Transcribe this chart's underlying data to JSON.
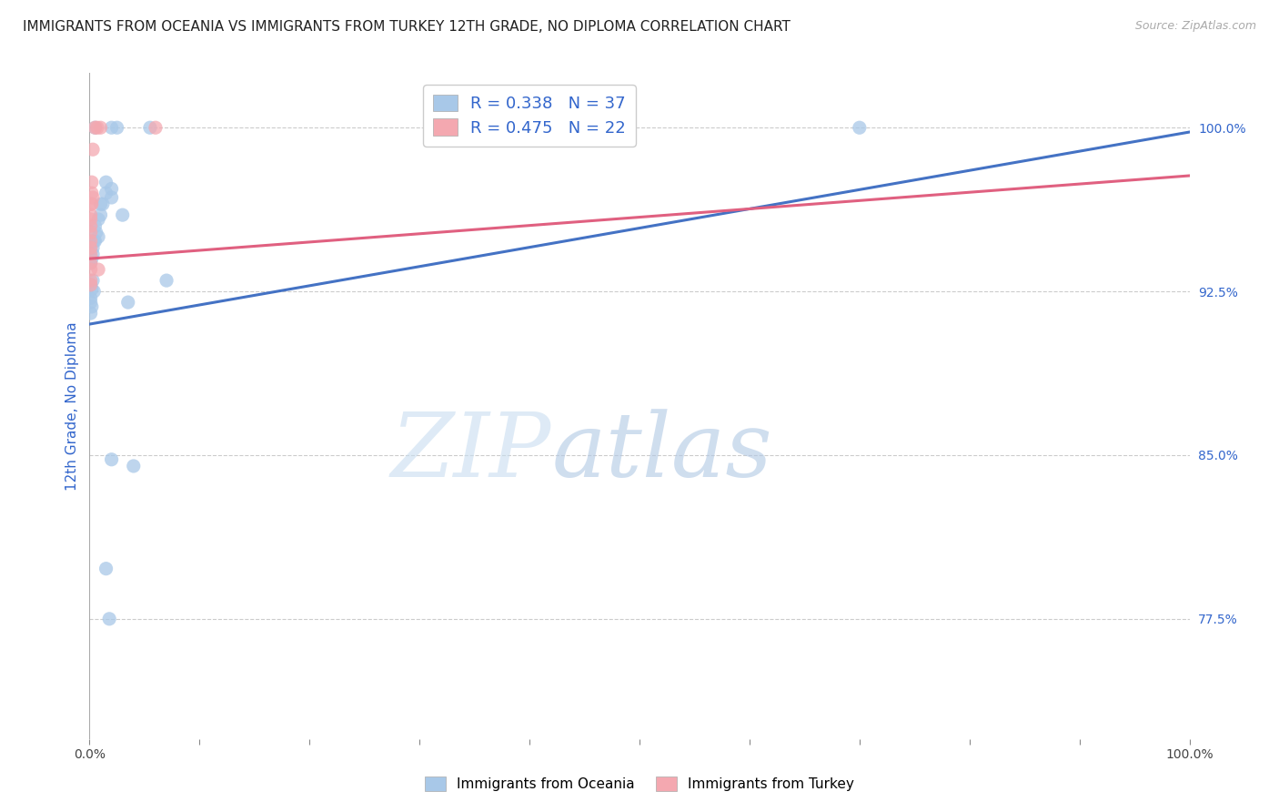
{
  "title": "IMMIGRANTS FROM OCEANIA VS IMMIGRANTS FROM TURKEY 12TH GRADE, NO DIPLOMA CORRELATION CHART",
  "source": "Source: ZipAtlas.com",
  "ylabel": "12th Grade, No Diploma",
  "ytick_labels": [
    "100.0%",
    "92.5%",
    "85.0%",
    "77.5%"
  ],
  "ytick_values": [
    1.0,
    0.925,
    0.85,
    0.775
  ],
  "xmin": 0.0,
  "xmax": 1.0,
  "ymin": 0.72,
  "ymax": 1.025,
  "watermark_zip": "ZIP",
  "watermark_atlas": "atlas",
  "legend_r_blue": "R = 0.338",
  "legend_n_blue": "N = 37",
  "legend_r_pink": "R = 0.475",
  "legend_n_pink": "N = 22",
  "blue_color": "#a8c8e8",
  "pink_color": "#f4a8b0",
  "blue_line_color": "#4472c4",
  "pink_line_color": "#e06080",
  "blue_scatter": [
    [
      0.005,
      1.0
    ],
    [
      0.02,
      1.0
    ],
    [
      0.025,
      1.0
    ],
    [
      0.055,
      1.0
    ],
    [
      0.015,
      0.975
    ],
    [
      0.015,
      0.97
    ],
    [
      0.02,
      0.972
    ],
    [
      0.02,
      0.968
    ],
    [
      0.01,
      0.965
    ],
    [
      0.01,
      0.96
    ],
    [
      0.012,
      0.965
    ],
    [
      0.03,
      0.96
    ],
    [
      0.008,
      0.958
    ],
    [
      0.008,
      0.95
    ],
    [
      0.006,
      0.952
    ],
    [
      0.005,
      0.955
    ],
    [
      0.005,
      0.948
    ],
    [
      0.004,
      0.948
    ],
    [
      0.003,
      0.945
    ],
    [
      0.003,
      0.942
    ],
    [
      0.002,
      0.94
    ],
    [
      0.001,
      0.938
    ],
    [
      0.003,
      0.93
    ],
    [
      0.001,
      0.928
    ],
    [
      0.001,
      0.922
    ],
    [
      0.002,
      0.926
    ],
    [
      0.001,
      0.92
    ],
    [
      0.001,
      0.915
    ],
    [
      0.002,
      0.918
    ],
    [
      0.004,
      0.925
    ],
    [
      0.07,
      0.93
    ],
    [
      0.035,
      0.92
    ],
    [
      0.02,
      0.848
    ],
    [
      0.04,
      0.845
    ],
    [
      0.015,
      0.798
    ],
    [
      0.018,
      0.775
    ],
    [
      0.7,
      1.0
    ]
  ],
  "pink_scatter": [
    [
      0.01,
      1.0
    ],
    [
      0.06,
      1.0
    ],
    [
      0.005,
      1.0
    ],
    [
      0.007,
      1.0
    ],
    [
      0.003,
      0.99
    ],
    [
      0.002,
      0.975
    ],
    [
      0.002,
      0.97
    ],
    [
      0.002,
      0.965
    ],
    [
      0.003,
      0.968
    ],
    [
      0.001,
      0.965
    ],
    [
      0.001,
      0.96
    ],
    [
      0.001,
      0.958
    ],
    [
      0.001,
      0.955
    ],
    [
      0.001,
      0.952
    ],
    [
      0.001,
      0.948
    ],
    [
      0.001,
      0.945
    ],
    [
      0.001,
      0.942
    ],
    [
      0.001,
      0.938
    ],
    [
      0.001,
      0.935
    ],
    [
      0.001,
      0.93
    ],
    [
      0.001,
      0.928
    ],
    [
      0.008,
      0.935
    ]
  ],
  "blue_trendline_x": [
    0.0,
    1.0
  ],
  "blue_trendline_y": [
    0.91,
    0.998
  ],
  "pink_trendline_x": [
    0.0,
    1.0
  ],
  "pink_trendline_y": [
    0.94,
    0.978
  ],
  "title_fontsize": 11,
  "axis_label_fontsize": 11,
  "tick_fontsize": 10,
  "source_fontsize": 9,
  "legend_fontsize": 13,
  "marker_size": 120
}
